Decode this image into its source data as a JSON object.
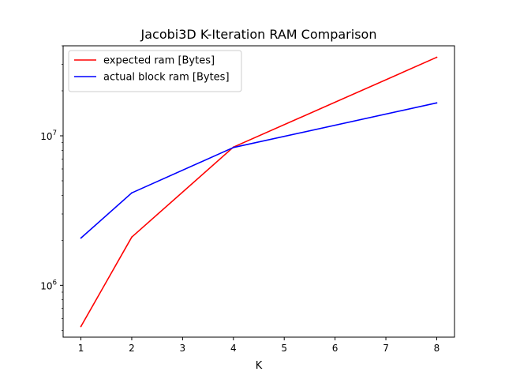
{
  "chart_data": {
    "type": "line",
    "title": "Jacobi3D K-Iteration RAM Comparison",
    "xlabel": "K",
    "ylabel": "",
    "xlim": [
      0.65,
      8.35
    ],
    "ylim": [
      450000,
      40000000
    ],
    "yscale": "log",
    "x_ticks": [
      1,
      2,
      3,
      4,
      5,
      6,
      7,
      8
    ],
    "y_major_ticks": [
      {
        "value": 1000000,
        "base": "10",
        "exp": "6"
      },
      {
        "value": 10000000,
        "base": "10",
        "exp": "7"
      }
    ],
    "grid": false,
    "legend_position": "upper-left",
    "series": [
      {
        "name": "expected ram [Bytes]",
        "color": "#ff0000",
        "x": [
          1,
          2,
          4,
          8
        ],
        "y": [
          530000,
          2100000,
          8400000,
          33500000
        ]
      },
      {
        "name": "actual block ram [Bytes]",
        "color": "#0000ff",
        "x": [
          1,
          2,
          4,
          8
        ],
        "y": [
          2070000,
          4150000,
          8350000,
          16600000
        ]
      }
    ]
  }
}
